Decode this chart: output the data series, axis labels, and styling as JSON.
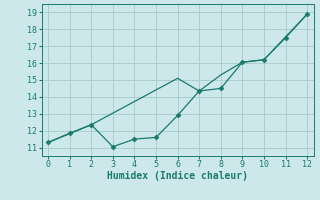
{
  "xlabel": "Humidex (Indice chaleur)",
  "xlim": [
    -0.3,
    12.3
  ],
  "ylim": [
    10.5,
    19.5
  ],
  "xticks": [
    0,
    1,
    2,
    3,
    4,
    5,
    6,
    7,
    8,
    9,
    10,
    11,
    12
  ],
  "yticks": [
    11,
    12,
    13,
    14,
    15,
    16,
    17,
    18,
    19
  ],
  "line1_x": [
    0,
    1,
    2,
    3,
    4,
    5,
    6,
    7,
    8,
    9,
    10,
    11,
    12
  ],
  "line1_y": [
    11.3,
    11.85,
    12.35,
    11.05,
    11.5,
    11.6,
    12.9,
    14.35,
    14.5,
    16.05,
    16.2,
    17.5,
    18.9
  ],
  "line2_x": [
    0,
    2,
    6,
    7,
    8,
    9,
    10,
    12
  ],
  "line2_y": [
    11.3,
    12.35,
    15.1,
    14.35,
    15.3,
    16.05,
    16.2,
    18.9
  ],
  "line_color": "#1a7a6e",
  "bg_color": "#cce8ea",
  "grid_color": "#aacfcf",
  "marker": "D",
  "marker_size": 2.5,
  "tick_fontsize": 6,
  "xlabel_fontsize": 7
}
